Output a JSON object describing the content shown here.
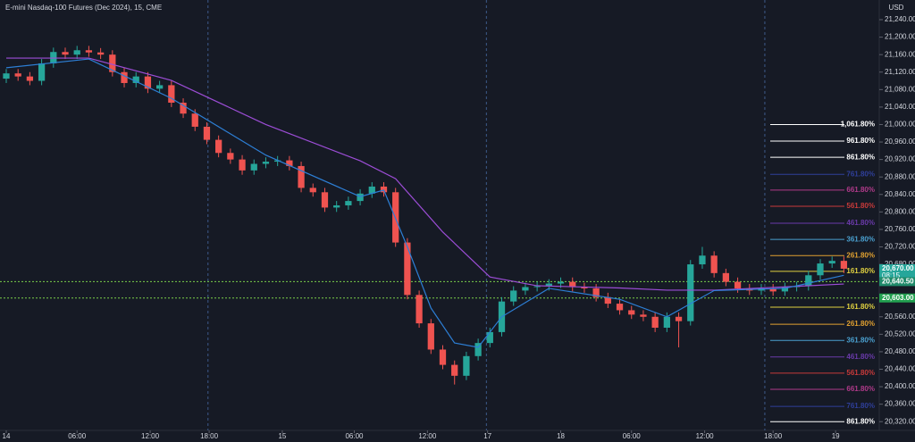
{
  "chart_data": {
    "type": "candlestick",
    "title": "E-mini Nasdaq-100 Futures (Dec 2024), 15, CME",
    "currency": "USD",
    "up_color": "#26a69a",
    "down_color": "#ef5350",
    "x": [
      0,
      1,
      2,
      3,
      4,
      5,
      6,
      7,
      8,
      9,
      10,
      11,
      12,
      13,
      14,
      15,
      16,
      17,
      18,
      19,
      20,
      21,
      22,
      23,
      24,
      25,
      26,
      27,
      28,
      29,
      30,
      31,
      32,
      33,
      34,
      35,
      36,
      37,
      38,
      39,
      40,
      41,
      42,
      43,
      44,
      45,
      46,
      47,
      48,
      49,
      50,
      51,
      52,
      53,
      54,
      55,
      56,
      57,
      58,
      59,
      60,
      61,
      62,
      63,
      64,
      65,
      66,
      67,
      68,
      69,
      70,
      71
    ],
    "open": [
      21105,
      21117,
      21110,
      21100,
      21140,
      21166,
      21160,
      21170,
      21165,
      21160,
      21120,
      21095,
      21110,
      21082,
      21090,
      21050,
      21025,
      20995,
      20965,
      20935,
      20920,
      20895,
      20910,
      20915,
      20918,
      20905,
      20855,
      20845,
      20810,
      20815,
      20825,
      20842,
      20858,
      20845,
      20730,
      20610,
      20545,
      20485,
      20450,
      20425,
      20470,
      20500,
      20525,
      20595,
      20620,
      20628,
      20630,
      20636,
      20640,
      20628,
      20625,
      20605,
      20590,
      20575,
      20565,
      20560,
      20535,
      20560,
      20550,
      20680,
      20700,
      20660,
      20640,
      20625,
      20620,
      20625,
      20618,
      20628,
      20630,
      20655,
      20682,
      20688
    ],
    "high": [
      21127,
      21127,
      21120,
      21150,
      21176,
      21176,
      21180,
      21180,
      21175,
      21170,
      21130,
      21120,
      21120,
      21100,
      21100,
      21060,
      21035,
      21005,
      20975,
      20945,
      20930,
      20920,
      20925,
      20928,
      20928,
      20915,
      20865,
      20855,
      20825,
      20835,
      20852,
      20868,
      20868,
      20855,
      20740,
      20620,
      20555,
      20495,
      20460,
      20480,
      20510,
      20535,
      20605,
      20630,
      20638,
      20640,
      20646,
      20650,
      20650,
      20638,
      20635,
      20615,
      20600,
      20585,
      20575,
      20570,
      20570,
      20570,
      20690,
      20720,
      20710,
      20670,
      20650,
      20635,
      20635,
      20635,
      20638,
      20640,
      20665,
      20692,
      20698,
      20698
    ],
    "low": [
      21095,
      21100,
      21090,
      21090,
      21130,
      21150,
      21150,
      21155,
      21150,
      21110,
      21085,
      21085,
      21072,
      21072,
      21040,
      21015,
      20985,
      20955,
      20925,
      20910,
      20885,
      20885,
      20900,
      20905,
      20895,
      20845,
      20835,
      20800,
      20800,
      20805,
      20815,
      20832,
      20835,
      20720,
      20600,
      20535,
      20475,
      20440,
      20405,
      20415,
      20460,
      20490,
      20515,
      20585,
      20610,
      20618,
      20620,
      20626,
      20618,
      20615,
      20595,
      20580,
      20565,
      20555,
      20550,
      20525,
      20525,
      20490,
      20540,
      20670,
      20650,
      20630,
      20615,
      20610,
      20610,
      20608,
      20608,
      20618,
      20620,
      20645,
      20672,
      20660
    ],
    "close": [
      21117,
      21110,
      21100,
      21140,
      21166,
      21160,
      21170,
      21165,
      21160,
      21120,
      21095,
      21110,
      21082,
      21090,
      21050,
      21025,
      20995,
      20965,
      20935,
      20920,
      20895,
      20910,
      20915,
      20918,
      20905,
      20855,
      20845,
      20810,
      20815,
      20825,
      20842,
      20858,
      20845,
      20730,
      20610,
      20545,
      20485,
      20450,
      20425,
      20470,
      20500,
      20525,
      20595,
      20620,
      20628,
      20630,
      20636,
      20640,
      20628,
      20625,
      20605,
      20590,
      20575,
      20565,
      20560,
      20535,
      20560,
      20550,
      20680,
      20700,
      20660,
      20640,
      20625,
      20620,
      20625,
      20618,
      20628,
      20630,
      20655,
      20682,
      20688,
      20670
    ],
    "lines": [
      {
        "color": "#9c4dd6",
        "x": [
          0,
          7,
          14,
          22,
          30,
          33,
          37,
          41,
          45,
          52,
          56,
          60,
          68,
          71
        ],
        "values": [
          21152,
          21152,
          21101,
          21000,
          20917,
          20876,
          20754,
          20651,
          20631,
          20626,
          20621,
          20621,
          20631,
          20635
        ]
      },
      {
        "color": "#2d7fd6",
        "x": [
          0,
          7,
          14,
          22,
          30,
          32,
          34,
          36,
          38,
          40,
          42,
          46,
          52,
          56,
          60,
          66,
          71
        ],
        "values": [
          21130,
          21150,
          21060,
          20930,
          20835,
          20850,
          20720,
          20580,
          20500,
          20490,
          20560,
          20625,
          20600,
          20560,
          20620,
          20625,
          20655
        ]
      }
    ],
    "session_breaks": [
      17.1,
      40.7,
      64.3
    ],
    "xlim": [
      -0.53,
      74
    ],
    "ylim": [
      20300,
      21285
    ],
    "xticks": [
      {
        "value": 0,
        "label": "14"
      },
      {
        "value": 6,
        "label": "06:00"
      },
      {
        "value": 12.2,
        "label": "12:00"
      },
      {
        "value": 17.2,
        "label": "18:00"
      },
      {
        "value": 23.4,
        "label": "15"
      },
      {
        "value": 29.5,
        "label": "06:00"
      },
      {
        "value": 35.7,
        "label": "12:00"
      },
      {
        "value": 40.8,
        "label": "17"
      },
      {
        "value": 47,
        "label": "18"
      },
      {
        "value": 53,
        "label": "06:00"
      },
      {
        "value": 59.2,
        "label": "12:00"
      },
      {
        "value": 65,
        "label": "18:00"
      },
      {
        "value": 70.3,
        "label": "19"
      }
    ],
    "yticks": [
      {
        "value": 21240,
        "label": "21,240.00"
      },
      {
        "value": 21200,
        "label": "21,200.00"
      },
      {
        "value": 21160,
        "label": "21,160.00"
      },
      {
        "value": 21120,
        "label": "21,120.00"
      },
      {
        "value": 21080,
        "label": "21,080.00"
      },
      {
        "value": 21040,
        "label": "21,040.00"
      },
      {
        "value": 21000,
        "label": "21,000.00"
      },
      {
        "value": 20960,
        "label": "20,960.00"
      },
      {
        "value": 20920,
        "label": "20,920.00"
      },
      {
        "value": 20880,
        "label": "20,880.00"
      },
      {
        "value": 20840,
        "label": "20,840.00"
      },
      {
        "value": 20800,
        "label": "20,800.00"
      },
      {
        "value": 20760,
        "label": "20,760.00"
      },
      {
        "value": 20720,
        "label": "20,720.00"
      },
      {
        "value": 20680,
        "label": "20,680.00"
      },
      {
        "value": 20560,
        "label": "20,560.00"
      },
      {
        "value": 20520,
        "label": "20,520.00"
      },
      {
        "value": 20480,
        "label": "20,480.00"
      },
      {
        "value": 20440,
        "label": "20,440.00"
      },
      {
        "value": 20400,
        "label": "20,400.00"
      },
      {
        "value": 20360,
        "label": "20,360.00"
      },
      {
        "value": 20320,
        "label": "20,320.00"
      }
    ],
    "fib_levels": [
      {
        "label": "1,061.80%",
        "value": 21000,
        "color": "#ffffff"
      },
      {
        "label": "961.80%",
        "value": 20962,
        "color": "#ffffff"
      },
      {
        "label": "861.80%",
        "value": 20925,
        "color": "#ffffff"
      },
      {
        "label": "761.80%",
        "value": 20886,
        "color": "#2f3f9a"
      },
      {
        "label": "661.80%",
        "value": 20850,
        "color": "#b03a8a"
      },
      {
        "label": "561.80%",
        "value": 20813,
        "color": "#c83a3a"
      },
      {
        "label": "461.80%",
        "value": 20774,
        "color": "#6a3aaa"
      },
      {
        "label": "361.80%",
        "value": 20737,
        "color": "#4aa0d0"
      },
      {
        "label": "261.80%",
        "value": 20700,
        "color": "#e0a030"
      },
      {
        "label": "161.80%",
        "value": 20664,
        "color": "#e0d040"
      },
      {
        "label": "161.80%",
        "value": 20582,
        "color": "#e0d040"
      },
      {
        "label": "261.80%",
        "value": 20543,
        "color": "#e0a030"
      },
      {
        "label": "361.80%",
        "value": 20506,
        "color": "#4aa0d0"
      },
      {
        "label": "461.80%",
        "value": 20468,
        "color": "#6a3aaa"
      },
      {
        "label": "561.80%",
        "value": 20431,
        "color": "#c83a3a"
      },
      {
        "label": "661.80%",
        "value": 20394,
        "color": "#b03a8a"
      },
      {
        "label": "761.80%",
        "value": 20355,
        "color": "#2f3f9a"
      },
      {
        "label": "861.80%",
        "value": 20320,
        "color": "#ffffff"
      }
    ],
    "price_badges": [
      {
        "label": "20,670.00",
        "value": 20670,
        "color": "#26a69a",
        "sub": "08:15"
      },
      {
        "label": "20,640.50",
        "value": 20640.5,
        "color": "#1f8a6a"
      },
      {
        "label": "20,603.00",
        "value": 20603,
        "color": "#22a050"
      }
    ],
    "level_lines": [
      {
        "value": 20640.5,
        "color": "#7ad04a"
      },
      {
        "value": 20603,
        "color": "#7ad04a"
      }
    ]
  }
}
